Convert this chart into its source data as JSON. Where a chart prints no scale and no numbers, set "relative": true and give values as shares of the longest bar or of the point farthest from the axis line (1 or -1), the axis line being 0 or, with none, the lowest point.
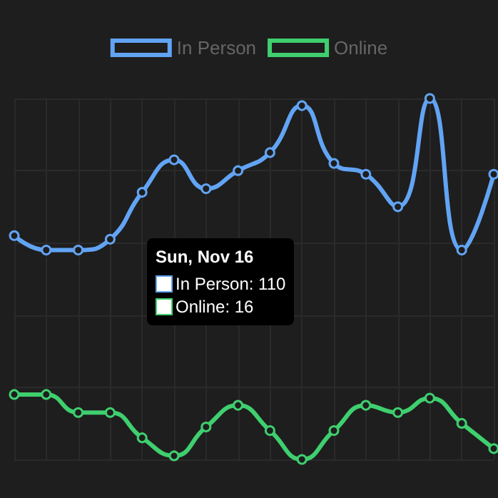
{
  "chart_data": {
    "type": "line",
    "relative": true,
    "categories": [
      null,
      null,
      null,
      null,
      null,
      null,
      null,
      null,
      null,
      null,
      null,
      null,
      null,
      null,
      null,
      null
    ],
    "series": [
      {
        "name": "In Person",
        "color": "#62a4f4",
        "values": [
          0.62,
          0.58,
          0.58,
          0.61,
          0.74,
          0.83,
          0.75,
          0.8,
          0.85,
          0.98,
          0.82,
          0.79,
          0.7,
          1,
          0.58,
          0.79
        ]
      },
      {
        "name": "Online",
        "color": "#3fcf6f",
        "values": [
          0.18,
          0.18,
          0.13,
          0.13,
          0.06,
          0.01,
          0.09,
          0.15,
          0.08,
          0,
          0.08,
          0.15,
          0.13,
          0.17,
          0.1,
          0.03
        ]
      }
    ],
    "legend": "top",
    "grid": true,
    "marker": "circle",
    "line_style": "solid",
    "annotations": [
      "Sun, Nov 16",
      "In Person: 110",
      "Online: 16"
    ]
  }
}
